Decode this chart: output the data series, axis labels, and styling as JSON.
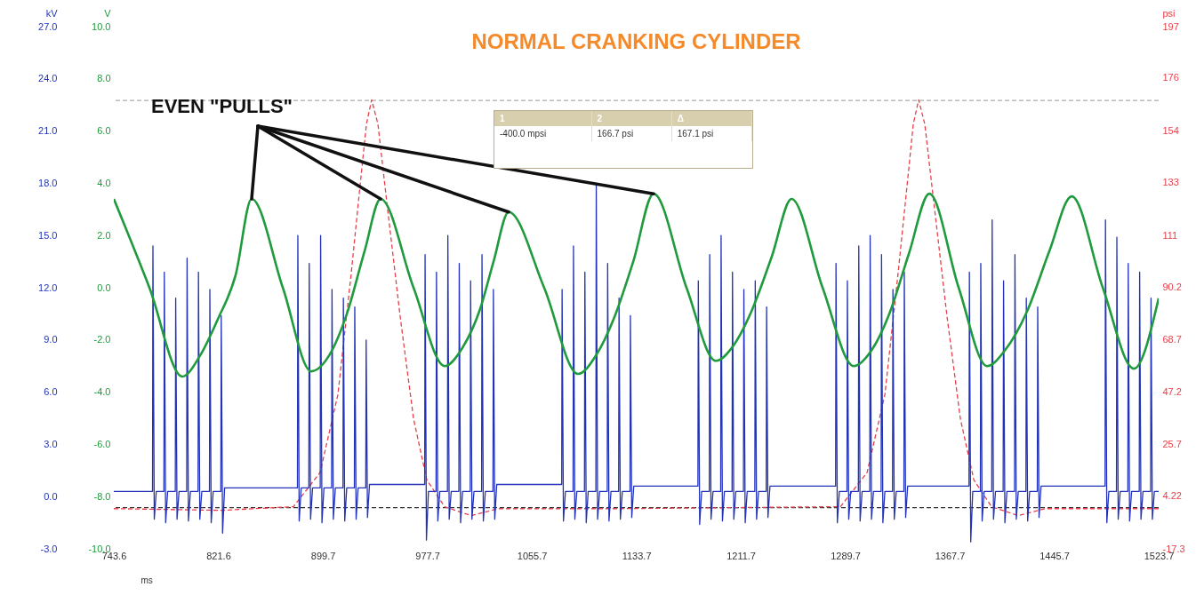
{
  "chart_data": {
    "type": "line",
    "title": "NORMAL CRANKING CYLINDER",
    "xlabel": "ms",
    "ylabel": "kV",
    "y2label": "psi",
    "y3label": "V",
    "xlim": [
      743.6,
      1523.7
    ],
    "xticks": [
      743.6,
      821.6,
      899.7,
      977.7,
      1055.7,
      1133.7,
      1211.7,
      1289.7,
      1367.7,
      1445.7,
      1523.7
    ],
    "ylim": [
      -3,
      27
    ],
    "yticks": [
      {
        "value": -3,
        "label": "-3.0"
      },
      {
        "value": 0,
        "label": "0.0"
      },
      {
        "value": 3,
        "label": "3.0"
      },
      {
        "value": 6,
        "label": "6.0"
      },
      {
        "value": 9,
        "label": "9.0"
      },
      {
        "value": 12,
        "label": "12.0"
      },
      {
        "value": 15,
        "label": "15.0"
      },
      {
        "value": 18,
        "label": "18.0"
      },
      {
        "value": 21,
        "label": "21.0"
      },
      {
        "value": 24,
        "label": "24.0"
      },
      {
        "value": 27,
        "label": "27.0"
      }
    ],
    "y3lim": [
      -10,
      10
    ],
    "y3ticks": [
      {
        "value": -10,
        "label": "-10.0"
      },
      {
        "value": -8,
        "label": "-8.0"
      },
      {
        "value": -6,
        "label": "-6.0"
      },
      {
        "value": -4,
        "label": "-4.0"
      },
      {
        "value": -2,
        "label": "-2.0"
      },
      {
        "value": 0,
        "label": "0.0"
      },
      {
        "value": 2,
        "label": "2.0"
      },
      {
        "value": 4,
        "label": "4.0"
      },
      {
        "value": 6,
        "label": "6.0"
      },
      {
        "value": 8,
        "label": "8.0"
      },
      {
        "value": 10,
        "label": "10.0"
      }
    ],
    "y2lim": [
      -17.3,
      197
    ],
    "y2ticks": [
      -17.3,
      4.22,
      25.7,
      47.2,
      68.7,
      90.2,
      111,
      133,
      154,
      176,
      197
    ],
    "ref_lines": [
      {
        "axis": "y2",
        "value": 166.7,
        "color": "#aaaaaa",
        "line_style": "dashed"
      },
      {
        "axis": "y2",
        "value": -0.4,
        "color": "#333333",
        "line_style": "dashed"
      }
    ],
    "annotations": [
      {
        "text": "EVEN \"PULLS\"",
        "x": 846.5,
        "y": 17.1
      },
      "1",
      "2",
      "Δ",
      "-400.0 mpsi",
      "166.7 psi",
      "167.1 psi"
    ],
    "series": [
      {
        "color": "#e8404a",
        "axis": "y2",
        "line_style": "dashed",
        "x": [
          743.6,
          824.6,
          877.7,
          897.6,
          910.9,
          920.9,
          927.5,
          932.2,
          936.1,
          940.8,
          947.4,
          957.4,
          967.4,
          977.3,
          990.6,
          1010.5,
          1030.4,
          1123.4,
          1286.1,
          1306.0,
          1319.3,
          1329.2,
          1335.9,
          1340.5,
          1344.5,
          1349.1,
          1355.8,
          1365.7,
          1375.7,
          1385.7,
          1398.9,
          1418.9,
          1438.8,
          1523.7
        ],
        "values": [
          -0.8,
          -1.5,
          0,
          14,
          46,
          96,
          132,
          157,
          167,
          157,
          125,
          78,
          36,
          11,
          0,
          -3.7,
          -0.8,
          -0.8,
          0,
          14,
          46,
          96,
          132,
          157,
          167,
          157,
          125,
          78,
          36,
          11,
          0,
          -3.7,
          -0.8,
          -0.8
        ]
      },
      {
        "color": "#2233b8",
        "x": [
          743.6,
          772.5,
          772.8,
          773.8,
          775.3,
          781.0,
          781.3,
          782.3,
          783.8,
          789.5,
          789.8,
          790.8,
          792.3,
          798.0,
          798.3,
          799.3,
          800.8,
          806.5,
          806.8,
          807.8,
          809.3,
          815.0,
          815.3,
          816.3,
          817.8,
          823.5,
          823.8,
          824.8,
          826.3,
          880.7,
          881.0,
          882.0,
          883.5,
          889.2,
          889.5,
          890.5,
          892.0,
          897.7,
          898.0,
          899.0,
          900.5,
          906.2,
          906.5,
          907.5,
          909.0,
          914.7,
          915.0,
          916.0,
          917.5,
          923.2,
          923.5,
          924.5,
          926.0,
          931.7,
          932.0,
          933.0,
          934.5,
          975.7,
          976.0,
          977.0,
          978.5,
          984.2,
          984.5,
          985.5,
          987.0,
          992.7,
          993.0,
          994.0,
          995.5,
          1001.2,
          1001.5,
          1002.5,
          1004.0,
          1009.7,
          1010.0,
          1011.0,
          1012.5,
          1018.2,
          1018.5,
          1019.5,
          1021.0,
          1026.7,
          1027.0,
          1028.0,
          1029.5,
          1078.0,
          1078.3,
          1079.3,
          1080.8,
          1086.5,
          1086.8,
          1087.8,
          1089.3,
          1095.0,
          1095.3,
          1096.3,
          1097.8,
          1103.5,
          1103.8,
          1104.8,
          1106.3,
          1112.0,
          1112.3,
          1113.3,
          1114.8,
          1120.5,
          1120.8,
          1121.8,
          1123.3,
          1129.0,
          1129.3,
          1130.3,
          1131.8,
          1179.7,
          1180.0,
          1181.0,
          1182.5,
          1188.2,
          1188.5,
          1189.5,
          1191.0,
          1196.7,
          1197.0,
          1198.0,
          1199.5,
          1205.2,
          1205.5,
          1206.5,
          1208.0,
          1213.7,
          1214.0,
          1215.0,
          1216.5,
          1222.2,
          1222.5,
          1223.5,
          1225.0,
          1230.7,
          1231.0,
          1232.0,
          1233.5,
          1282.5,
          1282.8,
          1283.8,
          1285.3,
          1291.0,
          1291.3,
          1292.3,
          1293.8,
          1299.5,
          1299.8,
          1300.8,
          1302.3,
          1308.0,
          1308.3,
          1309.3,
          1310.8,
          1316.5,
          1316.8,
          1317.8,
          1319.3,
          1325.0,
          1325.3,
          1326.3,
          1327.8,
          1333.5,
          1333.8,
          1334.8,
          1336.3,
          1382.1,
          1382.4,
          1383.4,
          1384.9,
          1390.6,
          1390.9,
          1391.9,
          1393.4,
          1399.1,
          1399.4,
          1400.4,
          1401.9,
          1407.6,
          1407.9,
          1408.9,
          1410.4,
          1416.1,
          1416.4,
          1417.4,
          1418.9,
          1424.6,
          1424.9,
          1425.9,
          1427.4,
          1433.1,
          1433.4,
          1434.4,
          1435.9,
          1483.7,
          1484.0,
          1485.0,
          1486.5,
          1492.2,
          1492.5,
          1493.5,
          1495.0,
          1500.7,
          1501.0,
          1502.0,
          1503.5,
          1509.2,
          1509.5,
          1510.5,
          1512.0,
          1517.7,
          1518.0,
          1519.0,
          1520.5,
          1523.7
        ],
        "values": [
          0.3,
          0.3,
          14.4,
          -1.3,
          0.3,
          0.3,
          12.9,
          -1.5,
          0.3,
          0.3,
          11.4,
          -1.3,
          0.3,
          0.3,
          13.7,
          -1.4,
          0.3,
          0.3,
          12.9,
          -1.3,
          0.3,
          0.3,
          11.9,
          -1.5,
          0.3,
          0.3,
          10.4,
          -2.1,
          0.5,
          0.5,
          15.0,
          -1.4,
          0.5,
          0.5,
          13.4,
          -1.3,
          0.5,
          0.5,
          15.0,
          -1.5,
          0.5,
          0.5,
          11.9,
          -1.3,
          0.5,
          0.5,
          11.4,
          -1.4,
          0.5,
          0.5,
          10.9,
          -1.3,
          0.5,
          0.5,
          9.0,
          -1.2,
          0.7,
          0.7,
          13.9,
          -2.5,
          0.3,
          0.3,
          12.9,
          -1.4,
          0.3,
          0.3,
          15.0,
          -1.3,
          0.3,
          0.3,
          13.4,
          -1.5,
          0.3,
          0.3,
          12.4,
          -1.3,
          0.3,
          0.3,
          13.9,
          -1.4,
          0.3,
          0.3,
          11.9,
          -1.3,
          0.7,
          0.7,
          11.9,
          -1.4,
          0.3,
          0.3,
          14.4,
          -1.3,
          0.3,
          0.3,
          12.9,
          -1.5,
          0.3,
          0.3,
          17.9,
          -1.3,
          0.3,
          0.3,
          13.4,
          -1.4,
          0.3,
          0.3,
          11.4,
          -1.3,
          0.3,
          0.3,
          10.4,
          -1.2,
          0.6,
          0.6,
          12.4,
          -1.6,
          0.3,
          0.3,
          13.9,
          -1.3,
          0.3,
          0.3,
          15.0,
          -1.4,
          0.3,
          0.3,
          12.9,
          -1.3,
          0.3,
          0.3,
          11.9,
          -1.5,
          0.3,
          0.3,
          12.4,
          -1.3,
          0.3,
          0.3,
          10.9,
          -1.2,
          0.6,
          0.6,
          13.4,
          -1.5,
          0.3,
          0.3,
          12.4,
          -1.3,
          0.3,
          0.3,
          14.4,
          -1.4,
          0.3,
          0.3,
          15.0,
          -1.3,
          0.3,
          0.3,
          13.9,
          -1.5,
          0.3,
          0.3,
          11.9,
          -1.3,
          0.3,
          0.3,
          12.9,
          -1.2,
          0.6,
          0.6,
          12.9,
          -2.6,
          0.3,
          0.3,
          13.4,
          -1.4,
          0.3,
          0.3,
          15.9,
          -1.3,
          0.3,
          0.3,
          12.4,
          -1.5,
          0.3,
          0.3,
          13.9,
          -1.3,
          0.3,
          0.3,
          11.4,
          -1.4,
          0.3,
          0.3,
          10.9,
          -1.2,
          0.6,
          0.6,
          15.9,
          -1.5,
          0.3,
          0.3,
          14.9,
          -1.3,
          0.3,
          0.3,
          13.4,
          -1.4,
          0.3,
          0.3,
          12.9,
          -1.3,
          0.3,
          0.3,
          11.4,
          -1.3,
          0.3,
          0.3
        ]
      },
      {
        "color": "#1f9a3c",
        "axis": "y3",
        "x": [
          743.6,
          770.2,
          794.7,
          808.0,
          821.3,
          834.6,
          846.5,
          869.8,
          891.0,
          904.3,
          917.6,
          930.8,
          942.8,
          967.4,
          990.6,
          1003.9,
          1017.2,
          1027.1,
          1038.4,
          1064.9,
          1090.2,
          1103.5,
          1116.8,
          1131.4,
          1146.6,
          1171.2,
          1193.1,
          1206.4,
          1219.7,
          1234.9,
          1249.6,
          1272.8,
          1296.1,
          1309.3,
          1322.6,
          1337.2,
          1352.5,
          1374.4,
          1395.6,
          1408.9,
          1425.5,
          1442.1,
          1458.8,
          1482.0,
          1505.2,
          1523.7
        ],
        "values": [
          3.4,
          0,
          -3.4,
          -2.6,
          -1.2,
          0.5,
          3.4,
          0,
          -3.2,
          -2.6,
          -1.0,
          1.4,
          3.4,
          0,
          -3.0,
          -2.3,
          -0.8,
          1.0,
          2.9,
          0,
          -3.3,
          -2.6,
          -1.2,
          1.0,
          3.6,
          0,
          -2.8,
          -2.2,
          -0.9,
          1.2,
          3.4,
          0,
          -3.0,
          -2.4,
          -1.0,
          1.3,
          3.6,
          0,
          -3.0,
          -2.4,
          -0.9,
          1.4,
          3.5,
          0,
          -3.1,
          -0.4
        ]
      }
    ]
  }
}
